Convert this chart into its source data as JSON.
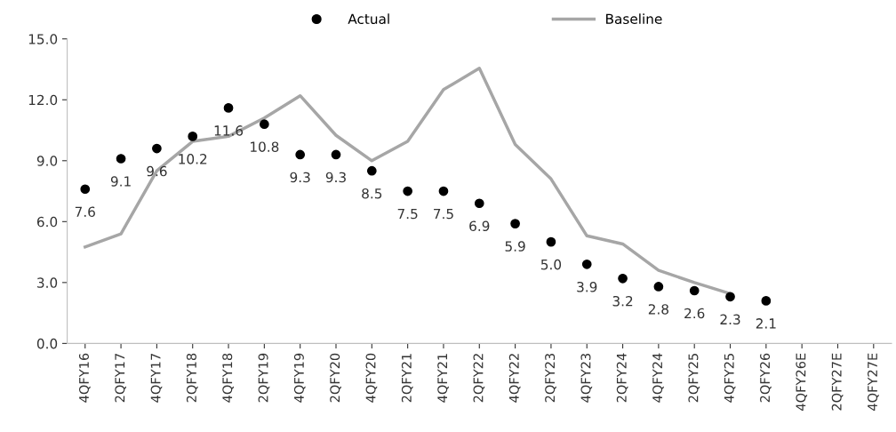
{
  "chart_data": {
    "type": "line",
    "categories": [
      "4QFY16",
      "2QFY17",
      "4QFY17",
      "2QFY18",
      "4QFY18",
      "2QFY19",
      "4QFY19",
      "2QFY20",
      "4QFY20",
      "2QFY21",
      "4QFY21",
      "2QFY22",
      "4QFY22",
      "2QFY23",
      "4QFY23",
      "2QFY24",
      "4QFY24",
      "2QFY25",
      "4QFY25",
      "2QFY26",
      "4QFY26E",
      "2QFY27E",
      "4QFY27E"
    ],
    "series": [
      {
        "name": "Actual",
        "type": "scatter",
        "color": "#000000",
        "marker": "circle",
        "values": [
          7.6,
          9.1,
          9.6,
          10.2,
          11.6,
          10.8,
          9.3,
          9.3,
          8.5,
          7.5,
          7.5,
          6.9,
          5.9,
          5.0,
          3.9,
          3.2,
          2.8,
          2.6,
          2.3,
          2.1,
          null,
          null,
          null
        ],
        "value_labels": [
          "7.6",
          "9.1",
          "9.6",
          "10.2",
          "11.6",
          "10.8",
          "9.3",
          "9.3",
          "8.5",
          "7.5",
          "7.5",
          "6.9",
          "5.9",
          "5.0",
          "3.9",
          "3.2",
          "2.8",
          "2.6",
          "2.3",
          "2.1",
          null,
          null,
          null
        ]
      },
      {
        "name": "Baseline",
        "color": "#a6a6a6",
        "values": [
          4.75,
          5.4,
          8.5,
          9.95,
          10.2,
          11.1,
          12.2,
          10.25,
          9.0,
          9.95,
          12.5,
          13.55,
          9.8,
          8.1,
          5.3,
          4.9,
          3.6,
          3.0,
          2.45,
          null,
          null,
          null,
          null
        ]
      }
    ],
    "ylim": [
      0,
      15
    ],
    "yticks": [
      {
        "value": 0,
        "label": "0.0"
      },
      {
        "value": 3,
        "label": "3.0"
      },
      {
        "value": 6,
        "label": "6.0"
      },
      {
        "value": 9,
        "label": "9.0"
      },
      {
        "value": 12,
        "label": "12.0"
      },
      {
        "value": 15,
        "label": "15.0"
      }
    ],
    "grid": false,
    "legend": "top"
  }
}
